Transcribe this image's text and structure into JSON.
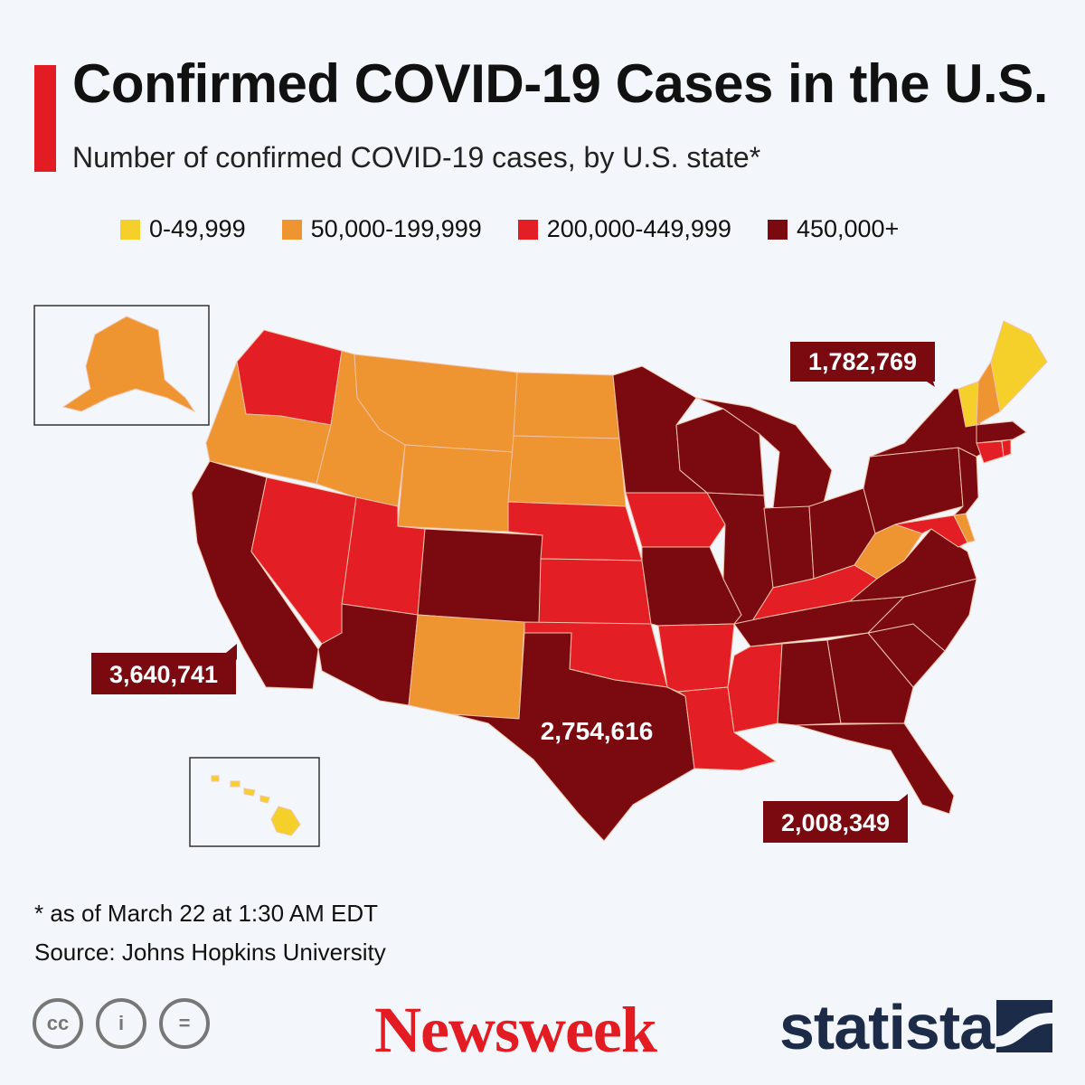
{
  "title": "Confirmed COVID-19 Cases in the U.S.",
  "subtitle": "Number of confirmed COVID-19 cases, by U.S. state*",
  "colors": {
    "accent": "#e31c23",
    "yellow": "#f5d02a",
    "orange": "#ee9430",
    "red": "#e31e25",
    "darkred": "#7a0a10",
    "border": "#f3c2a8"
  },
  "legend": [
    {
      "label": "0-49,999",
      "color": "#f5d02a"
    },
    {
      "label": "50,000-199,999",
      "color": "#ee9430"
    },
    {
      "label": "200,000-449,999",
      "color": "#e31e25"
    },
    {
      "label": "450,000+",
      "color": "#7a0a10"
    }
  ],
  "callouts": {
    "california": "3,640,741",
    "texas": "2,754,616",
    "new_york": "1,782,769",
    "florida": "2,008,349"
  },
  "states": {
    "WA": "red",
    "OR": "orange",
    "CA": "darkred",
    "NV": "red",
    "ID": "orange",
    "MT": "orange",
    "WY": "orange",
    "UT": "red",
    "AZ": "darkred",
    "CO": "darkred",
    "NM": "orange",
    "ND": "orange",
    "SD": "orange",
    "NE": "red",
    "KS": "red",
    "OK": "red",
    "TX": "darkred",
    "MN": "darkred",
    "IA": "red",
    "MO": "darkred",
    "AR": "red",
    "LA": "red",
    "WI": "darkred",
    "IL": "darkred",
    "MI": "darkred",
    "IN": "darkred",
    "OH": "darkred",
    "KY": "red",
    "TN": "darkred",
    "MS": "red",
    "AL": "darkred",
    "GA": "darkred",
    "FL": "darkred",
    "SC": "darkred",
    "NC": "darkred",
    "VA": "darkred",
    "WV": "orange",
    "PA": "darkred",
    "NY": "darkred",
    "NJ": "darkred",
    "MD": "red",
    "DE": "orange",
    "CT": "red",
    "RI": "red",
    "MA": "darkred",
    "VT": "yellow",
    "NH": "orange",
    "ME": "yellow",
    "AK": "orange",
    "HI": "yellow"
  },
  "footnote": "* as of March 22 at 1:30 AM EDT",
  "source": "Source: Johns Hopkins University",
  "brands": {
    "newsweek": "Newsweek",
    "statista": "statista"
  },
  "license_icons": [
    "cc-icon",
    "attribution-icon",
    "no-derivatives-icon"
  ],
  "license_glyphs": [
    "cc",
    "i",
    "="
  ]
}
